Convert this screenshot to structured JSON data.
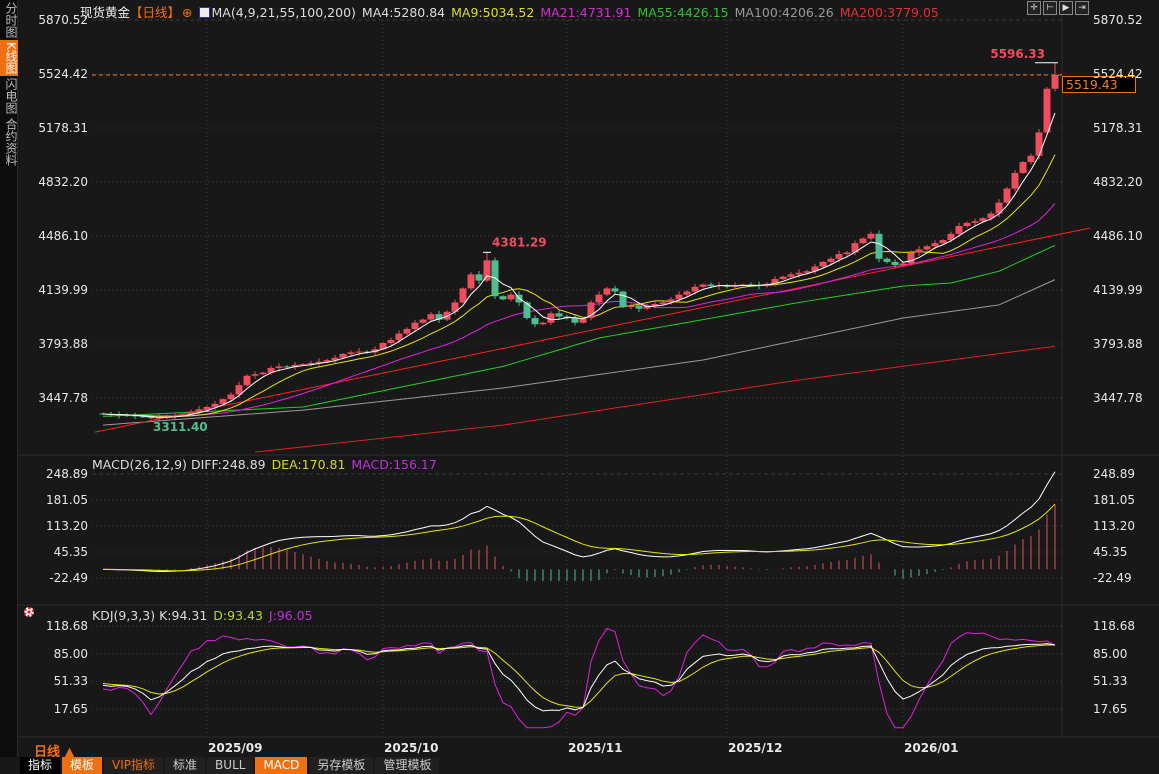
{
  "sidebar": {
    "items": [
      {
        "label": "分时图",
        "active": false
      },
      {
        "label": "K线图",
        "active": true
      },
      {
        "label": "闪电图",
        "active": false
      },
      {
        "label": "合约资料",
        "active": false
      }
    ]
  },
  "header": {
    "symbol": "现货黄金",
    "period": "【日线】",
    "ma_title": "MA(4,9,21,55,100,200)",
    "ma4": "MA4:5280.84",
    "ma9": "MA9:5034.52",
    "ma21": "MA21:4731.91",
    "ma55": "MA55:4426.15",
    "ma100": "MA100:4206.26",
    "ma200": "MA200:3779.05"
  },
  "toolbar": {
    "icons": [
      "crosshair-icon",
      "range-icon",
      "play-icon",
      "exit-icon"
    ]
  },
  "colors": {
    "up": "#ef4d5d",
    "down": "#4fbe8e",
    "ma4": "#ffffff",
    "ma9": "#e6e600",
    "ma21": "#e020e0",
    "ma55": "#20d020",
    "ma100": "#9a9a9a",
    "ma200": "#e02020",
    "accent": "#f07010"
  },
  "price_axis": {
    "labels": [
      "5870.52",
      "5524.42",
      "5178.31",
      "4832.20",
      "4486.10",
      "4139.99",
      "3793.88",
      "3447.78"
    ]
  },
  "current_price": "5519.43",
  "markers": {
    "high_label": "4381.29",
    "low_label": "3311.40",
    "last_high_label": "5596.33"
  },
  "macd": {
    "title": "MACD(26,12,9)",
    "diff": "DIFF:248.89",
    "dea": "DEA:170.81",
    "macd": "MACD:156.17",
    "axis_labels": [
      "248.89",
      "181.05",
      "113.20",
      "45.35",
      "-22.49"
    ]
  },
  "kdj": {
    "title": "KDJ(9,3,3)",
    "k": "K:94.31",
    "d": "D:93.43",
    "j": "J:96.05",
    "axis_labels": [
      "118.68",
      "85.00",
      "51.33",
      "17.65"
    ]
  },
  "period_label": "日线 ▲",
  "dates": [
    "2025/09",
    "2025/10",
    "2025/11",
    "2025/12",
    "2026/01"
  ],
  "tabs": [
    {
      "label": "指标",
      "style": "black"
    },
    {
      "label": "模板",
      "style": "orange"
    },
    {
      "label": "VIP指标",
      "style": "vip"
    },
    {
      "label": "标准",
      "style": ""
    },
    {
      "label": "BULL",
      "style": ""
    },
    {
      "label": "MACD",
      "style": "orange"
    },
    {
      "label": "另存模板",
      "style": ""
    },
    {
      "label": "管理模板",
      "style": ""
    }
  ],
  "chart_data": {
    "type": "candlestick",
    "close": [
      3345,
      3340,
      3338,
      3336,
      3330,
      3325,
      3318,
      3322,
      3330,
      3336,
      3342,
      3360,
      3375,
      3390,
      3410,
      3440,
      3470,
      3530,
      3590,
      3600,
      3610,
      3640,
      3650,
      3645,
      3660,
      3665,
      3672,
      3680,
      3690,
      3705,
      3730,
      3740,
      3745,
      3740,
      3760,
      3800,
      3820,
      3860,
      3890,
      3930,
      3950,
      3985,
      3950,
      4000,
      4060,
      4150,
      4240,
      4200,
      4330,
      4100,
      4080,
      4110,
      4060,
      3960,
      3920,
      3930,
      3990,
      3970,
      3960,
      3930,
      3960,
      4060,
      4110,
      4150,
      4130,
      4030,
      4040,
      4020,
      4040,
      4050,
      4060,
      4080,
      4110,
      4130,
      4160,
      4175,
      4165,
      4170,
      4160,
      4170,
      4175,
      4172,
      4165,
      4180,
      4210,
      4225,
      4240,
      4250,
      4260,
      4290,
      4320,
      4340,
      4370,
      4380,
      4440,
      4470,
      4500,
      4340,
      4320,
      4300,
      4310,
      4380,
      4400,
      4420,
      4440,
      4460,
      4500,
      4550,
      4570,
      4580,
      4600,
      4630,
      4700,
      4790,
      4890,
      4960,
      5000,
      5150,
      5430,
      5519.43
    ],
    "extremes": {
      "high": {
        "index": 48,
        "value": 4381.29
      },
      "low": {
        "index": 6,
        "value": 3311.4
      },
      "last_high": {
        "index": 119,
        "value": 5596.33
      }
    },
    "ma55": [
      [
        0,
        3330
      ],
      [
        25,
        3390
      ],
      [
        50,
        3650
      ],
      [
        62,
        3832
      ],
      [
        75,
        3950
      ],
      [
        87,
        4060
      ],
      [
        100,
        4165
      ],
      [
        106,
        4185
      ],
      [
        112,
        4260
      ],
      [
        119,
        4426.15
      ]
    ],
    "ma100": [
      [
        0,
        3274
      ],
      [
        25,
        3370
      ],
      [
        50,
        3512
      ],
      [
        75,
        3691
      ],
      [
        100,
        3960
      ],
      [
        112,
        4044
      ],
      [
        119,
        4206.26
      ]
    ],
    "ma200": [
      [
        19,
        3101
      ],
      [
        50,
        3274
      ],
      [
        87,
        3563
      ],
      [
        119,
        3779.05
      ]
    ],
    "trendline": [
      [
        -1,
        3229
      ],
      [
        123.4,
        4537
      ]
    ],
    "ylim": [
      3300,
      5870.52
    ],
    "x_ticks": [
      "2025/09",
      "2025/10",
      "2025/11",
      "2025/12",
      "2026/01"
    ]
  }
}
